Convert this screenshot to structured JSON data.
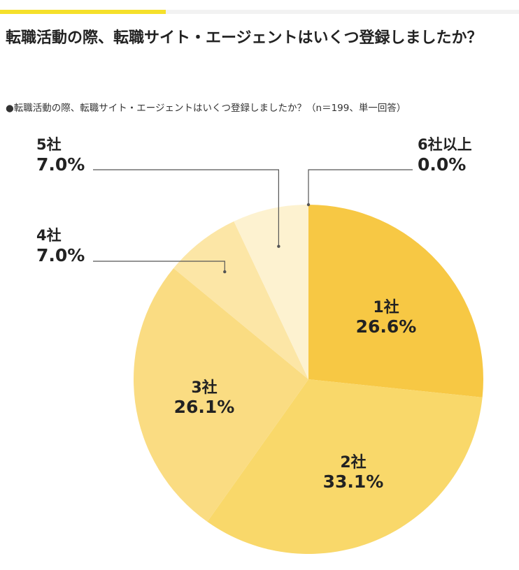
{
  "header": {
    "title": "転職活動の際、転職サイト・エージェントはいくつ登録しましたか？",
    "subtitle": "●転職活動の際、転職サイト・エージェントはいくつ登録しましたか？（n＝199、単一回答）",
    "accent_color": "#f5e02b"
  },
  "chart_data": {
    "type": "pie",
    "title": "転職活動の際、転職サイト・エージェントはいくつ登録しましたか？",
    "n": 199,
    "start_angle": "12 o'clock",
    "direction": "clockwise",
    "slices": [
      {
        "label": "1社",
        "value": 26.6,
        "value_text": "26.6%",
        "color": "#f7c844"
      },
      {
        "label": "2社",
        "value": 33.1,
        "value_text": "33.1%",
        "color": "#f9d86a"
      },
      {
        "label": "3社",
        "value": 26.1,
        "value_text": "26.1%",
        "color": "#fadc82"
      },
      {
        "label": "4社",
        "value": 7.0,
        "value_text": "7.0%",
        "color": "#fce6a6"
      },
      {
        "label": "5社",
        "value": 7.0,
        "value_text": "7.0%",
        "color": "#fdf2d0"
      },
      {
        "label": "6社以上",
        "value": 0.0,
        "value_text": "0.0%",
        "color": "#fef8e4"
      }
    ]
  }
}
